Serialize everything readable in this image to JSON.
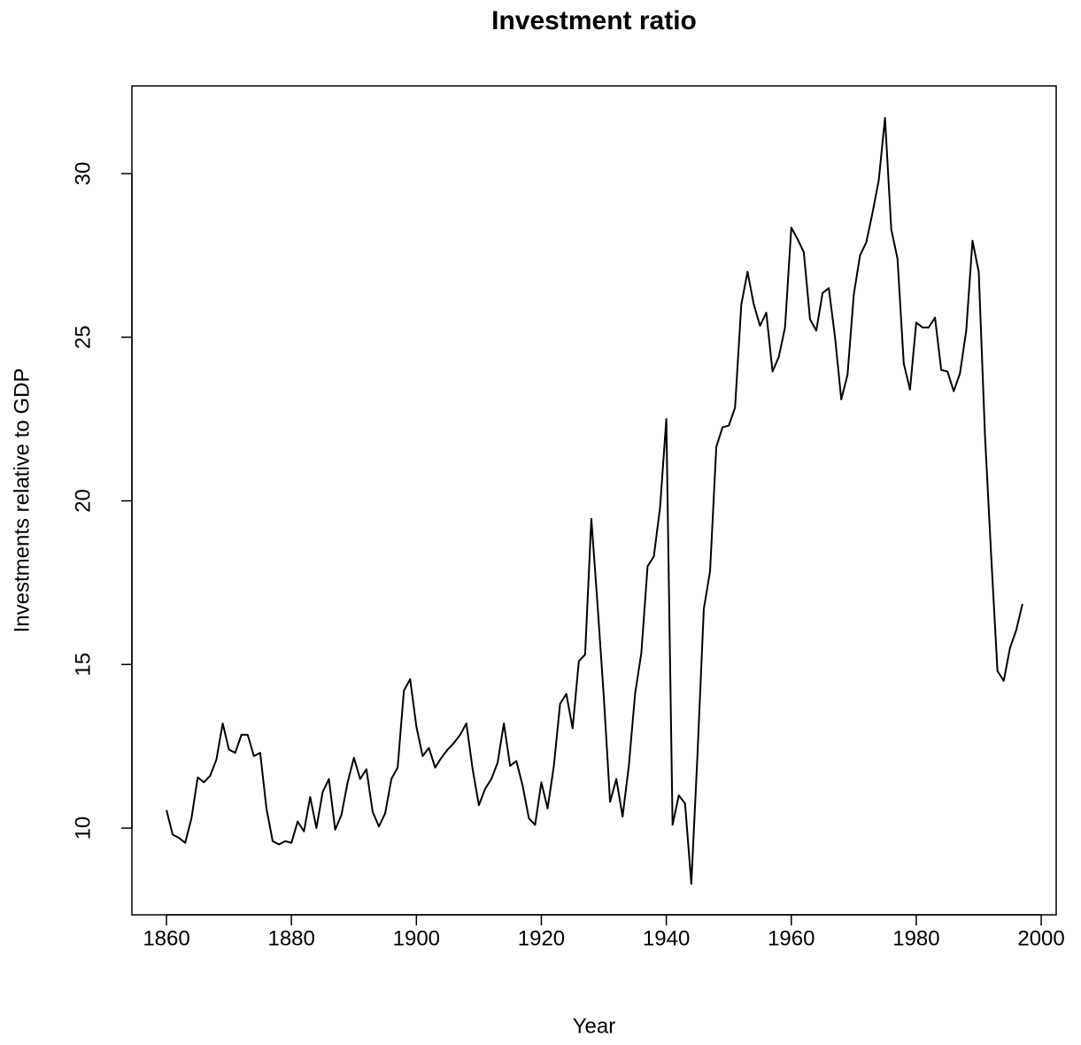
{
  "chart_data": {
    "type": "line",
    "title": "Investment ratio",
    "x_label": "Year",
    "y_label": "Investments relative to GDP",
    "x": [
      1860,
      1861,
      1862,
      1863,
      1864,
      1865,
      1866,
      1867,
      1868,
      1869,
      1870,
      1871,
      1872,
      1873,
      1874,
      1875,
      1876,
      1877,
      1878,
      1879,
      1880,
      1881,
      1882,
      1883,
      1884,
      1885,
      1886,
      1887,
      1888,
      1889,
      1890,
      1891,
      1892,
      1893,
      1894,
      1895,
      1896,
      1897,
      1898,
      1899,
      1900,
      1901,
      1902,
      1903,
      1904,
      1905,
      1906,
      1907,
      1908,
      1909,
      1910,
      1911,
      1912,
      1913,
      1914,
      1915,
      1916,
      1917,
      1918,
      1919,
      1920,
      1921,
      1922,
      1923,
      1924,
      1925,
      1926,
      1927,
      1928,
      1929,
      1930,
      1931,
      1932,
      1933,
      1934,
      1935,
      1936,
      1937,
      1938,
      1939,
      1940,
      1941,
      1942,
      1943,
      1944,
      1945,
      1946,
      1947,
      1948,
      1949,
      1950,
      1951,
      1952,
      1953,
      1954,
      1955,
      1956,
      1957,
      1958,
      1959,
      1960,
      1961,
      1962,
      1963,
      1964,
      1965,
      1966,
      1967,
      1968,
      1969,
      1970,
      1971,
      1972,
      1973,
      1974,
      1975,
      1976,
      1977,
      1978,
      1979,
      1980,
      1981,
      1982,
      1983,
      1984,
      1985,
      1986,
      1987,
      1988,
      1989,
      1990,
      1991,
      1992,
      1993,
      1994,
      1995,
      1996,
      1997
    ],
    "values": [
      10.55,
      9.8,
      9.7,
      9.55,
      10.3,
      11.55,
      11.4,
      11.6,
      12.1,
      13.2,
      12.4,
      12.3,
      12.85,
      12.85,
      12.2,
      12.3,
      10.6,
      9.6,
      9.5,
      9.6,
      9.55,
      10.2,
      9.9,
      10.95,
      10.0,
      11.1,
      11.5,
      9.95,
      10.4,
      11.4,
      12.15,
      11.5,
      11.8,
      10.5,
      10.05,
      10.45,
      11.5,
      11.85,
      14.2,
      14.55,
      13.1,
      12.2,
      12.45,
      11.85,
      12.15,
      12.4,
      12.6,
      12.85,
      13.2,
      11.8,
      10.7,
      11.2,
      11.5,
      12.0,
      13.2,
      11.9,
      12.05,
      11.3,
      10.3,
      10.1,
      11.4,
      10.6,
      11.9,
      13.8,
      14.1,
      13.05,
      15.1,
      15.3,
      19.45,
      16.8,
      14.0,
      10.8,
      11.5,
      10.35,
      11.9,
      14.1,
      15.35,
      18.0,
      18.3,
      19.8,
      22.5,
      10.1,
      11.0,
      10.75,
      8.3,
      12.3,
      16.7,
      17.85,
      21.65,
      22.25,
      22.3,
      22.85,
      26.0,
      27.0,
      26.0,
      25.35,
      25.75,
      23.95,
      24.4,
      25.3,
      28.35,
      28.0,
      27.6,
      25.55,
      25.2,
      26.35,
      26.5,
      25.0,
      23.1,
      23.85,
      26.3,
      27.5,
      27.9,
      28.8,
      29.8,
      31.7,
      28.3,
      27.4,
      24.2,
      23.4,
      25.45,
      25.3,
      25.3,
      25.6,
      24.0,
      23.95,
      23.35,
      23.9,
      25.2,
      27.95,
      27.0,
      22.0,
      18.3,
      14.8,
      14.5,
      15.5,
      16.05,
      16.85
    ],
    "color": "#000000",
    "xlim": [
      1854.47,
      2002.4
    ],
    "ylim": [
      7.35,
      32.68
    ],
    "xticks": [
      1860,
      1880,
      1900,
      1920,
      1940,
      1960,
      1980,
      2000
    ],
    "yticks": [
      10,
      15,
      20,
      25,
      30
    ]
  }
}
